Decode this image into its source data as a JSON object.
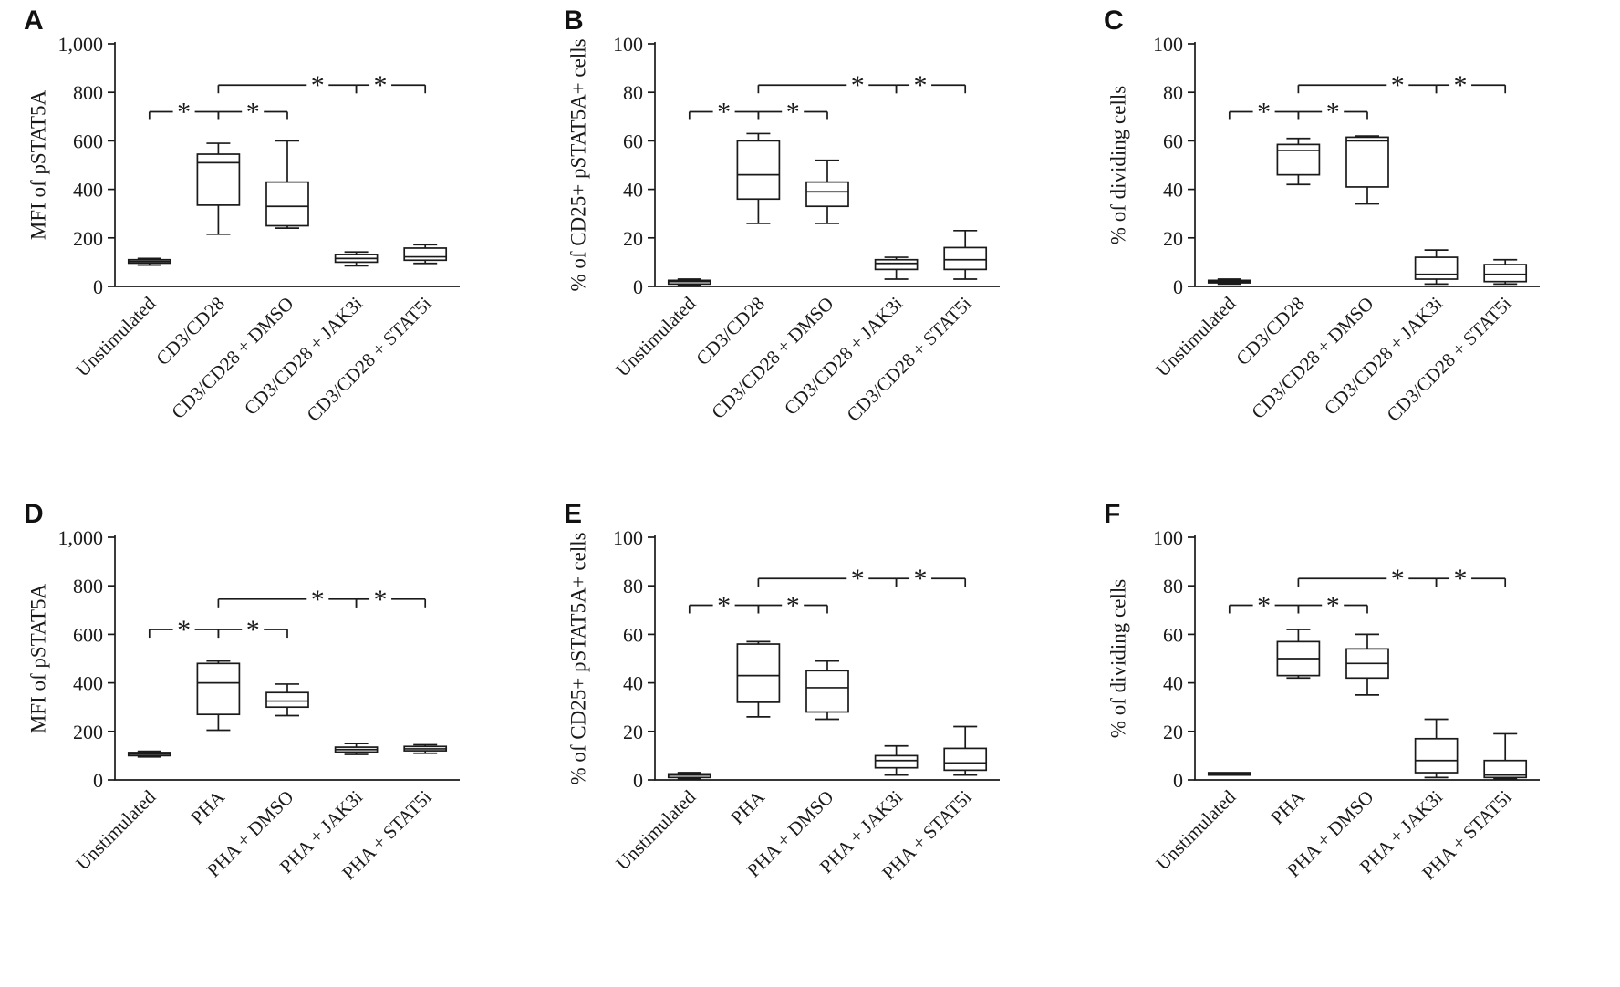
{
  "colors": {
    "stroke": "#1a1a1a",
    "background": "#ffffff"
  },
  "box_value_order": [
    "min",
    "q1",
    "median",
    "q3",
    "max"
  ],
  "chart_data": [
    {
      "type": "box",
      "panel_label": "A",
      "title": "",
      "xlabel": "",
      "ylabel": "MFI of pSTAT5A",
      "ylim": [
        0,
        1000
      ],
      "yticks": [
        0,
        200,
        400,
        600,
        800,
        1000
      ],
      "ytick_labels": [
        "0",
        "200",
        "400",
        "600",
        "800",
        "1,000"
      ],
      "grid": false,
      "legend": false,
      "categories": [
        "Unstimulated",
        "CD3/CD28",
        "CD3/CD28 + DMSO",
        "CD3/CD28 + JAK3i",
        "CD3/CD28 + STAT5i"
      ],
      "boxes": [
        [
          88,
          96,
          103,
          110,
          115
        ],
        [
          215,
          335,
          510,
          545,
          590
        ],
        [
          240,
          250,
          330,
          430,
          600
        ],
        [
          85,
          100,
          115,
          132,
          142
        ],
        [
          95,
          108,
          122,
          158,
          172
        ]
      ],
      "significance": [
        {
          "from": 0,
          "to": 1,
          "y": 720,
          "label": "*",
          "star_pos": 0.5
        },
        {
          "from": 1,
          "to": 2,
          "y": 720,
          "label": "*",
          "star_pos": 0.5
        },
        {
          "from": 1,
          "to": 3,
          "y": 830,
          "label": "*",
          "star_pos": 0.72
        },
        {
          "from": 3,
          "to": 4,
          "y": 830,
          "label": "*",
          "star_pos": 0.35
        }
      ]
    },
    {
      "type": "box",
      "panel_label": "B",
      "title": "",
      "xlabel": "",
      "ylabel": "% of CD25+ pSTAT5A+ cells",
      "ylim": [
        0,
        100
      ],
      "yticks": [
        0,
        20,
        40,
        60,
        80,
        100
      ],
      "ytick_labels": [
        "0",
        "20",
        "40",
        "60",
        "80",
        "100"
      ],
      "grid": false,
      "legend": false,
      "categories": [
        "Unstimulated",
        "CD3/CD28",
        "CD3/CD28 + DMSO",
        "CD3/CD28 + JAK3i",
        "CD3/CD28 + STAT5i"
      ],
      "boxes": [
        [
          0.5,
          1,
          2,
          2.5,
          3
        ],
        [
          26,
          36,
          46,
          60,
          63
        ],
        [
          26,
          33,
          39,
          43,
          52
        ],
        [
          3,
          7,
          9.5,
          11,
          12
        ],
        [
          3,
          7,
          11,
          16,
          23
        ]
      ],
      "significance": [
        {
          "from": 0,
          "to": 1,
          "y": 72,
          "label": "*",
          "star_pos": 0.5
        },
        {
          "from": 1,
          "to": 2,
          "y": 72,
          "label": "*",
          "star_pos": 0.5
        },
        {
          "from": 1,
          "to": 3,
          "y": 83,
          "label": "*",
          "star_pos": 0.72
        },
        {
          "from": 3,
          "to": 4,
          "y": 83,
          "label": "*",
          "star_pos": 0.35
        }
      ]
    },
    {
      "type": "box",
      "panel_label": "C",
      "title": "",
      "xlabel": "",
      "ylabel": "% of dividing cells",
      "ylim": [
        0,
        100
      ],
      "yticks": [
        0,
        20,
        40,
        60,
        80,
        100
      ],
      "ytick_labels": [
        "0",
        "20",
        "40",
        "60",
        "80",
        "100"
      ],
      "grid": false,
      "legend": false,
      "categories": [
        "Unstimulated",
        "CD3/CD28",
        "CD3/CD28 + DMSO",
        "CD3/CD28 + JAK3i",
        "CD3/CD28 + STAT5i"
      ],
      "boxes": [
        [
          1,
          1.5,
          2,
          2.5,
          3
        ],
        [
          42,
          46,
          56,
          58.5,
          61
        ],
        [
          34,
          41,
          60,
          61.5,
          62
        ],
        [
          1,
          3,
          5,
          12,
          15
        ],
        [
          1,
          2,
          5,
          9,
          11
        ]
      ],
      "significance": [
        {
          "from": 0,
          "to": 1,
          "y": 72,
          "label": "*",
          "star_pos": 0.5
        },
        {
          "from": 1,
          "to": 2,
          "y": 72,
          "label": "*",
          "star_pos": 0.5
        },
        {
          "from": 1,
          "to": 3,
          "y": 83,
          "label": "*",
          "star_pos": 0.72
        },
        {
          "from": 3,
          "to": 4,
          "y": 83,
          "label": "*",
          "star_pos": 0.35
        }
      ]
    },
    {
      "type": "box",
      "panel_label": "D",
      "title": "",
      "xlabel": "",
      "ylabel": "MFI of pSTAT5A",
      "ylim": [
        0,
        1000
      ],
      "yticks": [
        0,
        200,
        400,
        600,
        800,
        1000
      ],
      "ytick_labels": [
        "0",
        "200",
        "400",
        "600",
        "800",
        "1,000"
      ],
      "grid": false,
      "legend": false,
      "categories": [
        "Unstimulated",
        "PHA",
        "PHA + DMSO",
        "PHA + JAK3i",
        "PHA + STAT5i"
      ],
      "boxes": [
        [
          95,
          100,
          107,
          113,
          118
        ],
        [
          205,
          270,
          400,
          480,
          490
        ],
        [
          265,
          300,
          325,
          360,
          395
        ],
        [
          105,
          115,
          125,
          135,
          150
        ],
        [
          110,
          120,
          128,
          138,
          145
        ]
      ],
      "significance": [
        {
          "from": 0,
          "to": 1,
          "y": 620,
          "label": "*",
          "star_pos": 0.5
        },
        {
          "from": 1,
          "to": 2,
          "y": 620,
          "label": "*",
          "star_pos": 0.5
        },
        {
          "from": 1,
          "to": 3,
          "y": 745,
          "label": "*",
          "star_pos": 0.72
        },
        {
          "from": 3,
          "to": 4,
          "y": 745,
          "label": "*",
          "star_pos": 0.35
        }
      ]
    },
    {
      "type": "box",
      "panel_label": "E",
      "title": "",
      "xlabel": "",
      "ylabel": "% of CD25+ pSTAT5A+ cells",
      "ylim": [
        0,
        100
      ],
      "yticks": [
        0,
        20,
        40,
        60,
        80,
        100
      ],
      "ytick_labels": [
        "0",
        "20",
        "40",
        "60",
        "80",
        "100"
      ],
      "grid": false,
      "legend": false,
      "categories": [
        "Unstimulated",
        "PHA",
        "PHA + DMSO",
        "PHA + JAK3i",
        "PHA + STAT5i"
      ],
      "boxes": [
        [
          0.5,
          1,
          2,
          2.5,
          3
        ],
        [
          26,
          32,
          43,
          56,
          57
        ],
        [
          25,
          28,
          38,
          45,
          49
        ],
        [
          2,
          5,
          8,
          10,
          14
        ],
        [
          2,
          4,
          7,
          13,
          22
        ]
      ],
      "significance": [
        {
          "from": 0,
          "to": 1,
          "y": 72,
          "label": "*",
          "star_pos": 0.5
        },
        {
          "from": 1,
          "to": 2,
          "y": 72,
          "label": "*",
          "star_pos": 0.5
        },
        {
          "from": 1,
          "to": 3,
          "y": 83,
          "label": "*",
          "star_pos": 0.72
        },
        {
          "from": 3,
          "to": 4,
          "y": 83,
          "label": "*",
          "star_pos": 0.35
        }
      ]
    },
    {
      "type": "box",
      "panel_label": "F",
      "title": "",
      "xlabel": "",
      "ylabel": "% of dividing cells",
      "ylim": [
        0,
        100
      ],
      "yticks": [
        0,
        20,
        40,
        60,
        80,
        100
      ],
      "ytick_labels": [
        "0",
        "20",
        "40",
        "60",
        "80",
        "100"
      ],
      "grid": false,
      "legend": false,
      "categories": [
        "Unstimulated",
        "PHA",
        "PHA + DMSO",
        "PHA + JAK3i",
        "PHA + STAT5i"
      ],
      "boxes": [
        [
          2,
          2,
          2.5,
          3,
          3
        ],
        [
          42,
          43,
          50,
          57,
          62
        ],
        [
          35,
          42,
          48,
          54,
          60
        ],
        [
          1,
          3,
          8,
          17,
          25
        ],
        [
          0.5,
          1,
          2,
          8,
          19
        ]
      ],
      "significance": [
        {
          "from": 0,
          "to": 1,
          "y": 72,
          "label": "*",
          "star_pos": 0.5
        },
        {
          "from": 1,
          "to": 2,
          "y": 72,
          "label": "*",
          "star_pos": 0.5
        },
        {
          "from": 1,
          "to": 3,
          "y": 83,
          "label": "*",
          "star_pos": 0.72
        },
        {
          "from": 3,
          "to": 4,
          "y": 83,
          "label": "*",
          "star_pos": 0.35
        }
      ]
    }
  ]
}
